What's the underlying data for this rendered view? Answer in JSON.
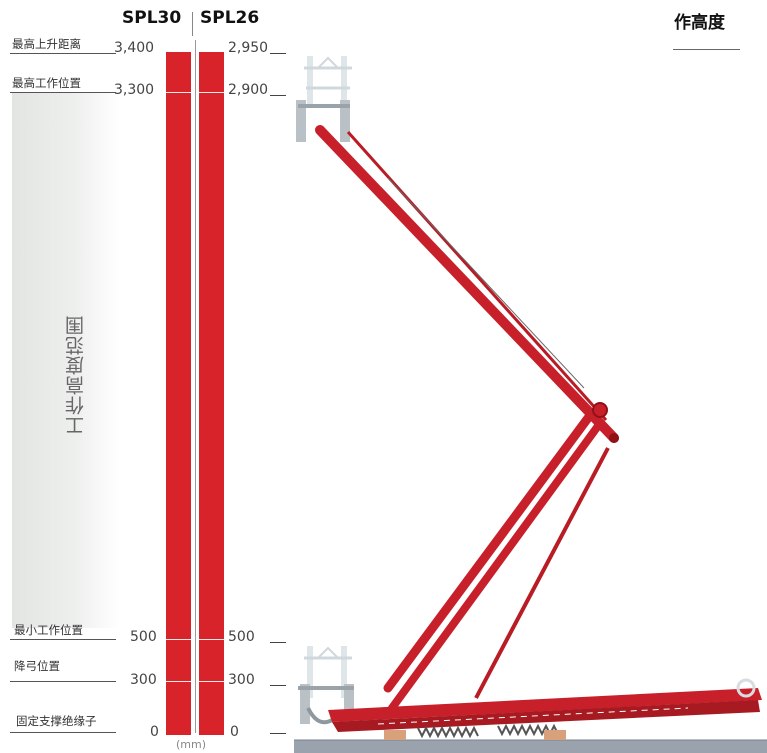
{
  "models": {
    "spl30": "SPL30",
    "spl26": "SPL26"
  },
  "heading": "作高度",
  "rows": [
    {
      "label": "最高上升距离",
      "spl30": "3,400",
      "spl26": "2,950"
    },
    {
      "label": "最高工作位置",
      "spl30": "3,300",
      "spl26": "2,900"
    },
    {
      "label": "最小工作位置",
      "spl30": "500",
      "spl26": "500"
    },
    {
      "label": "降弓位置",
      "spl30": "300",
      "spl26": "300"
    },
    {
      "label": "固定支撑绝缘子",
      "spl30": "0",
      "spl26": "0"
    }
  ],
  "range_label": "工作高度范围",
  "unit": "(mm)",
  "colors": {
    "bar": "#d9232a",
    "frame": "#c8202a",
    "rail": "#9aa3ad"
  },
  "icons": [
    "pantograph-illustration"
  ]
}
